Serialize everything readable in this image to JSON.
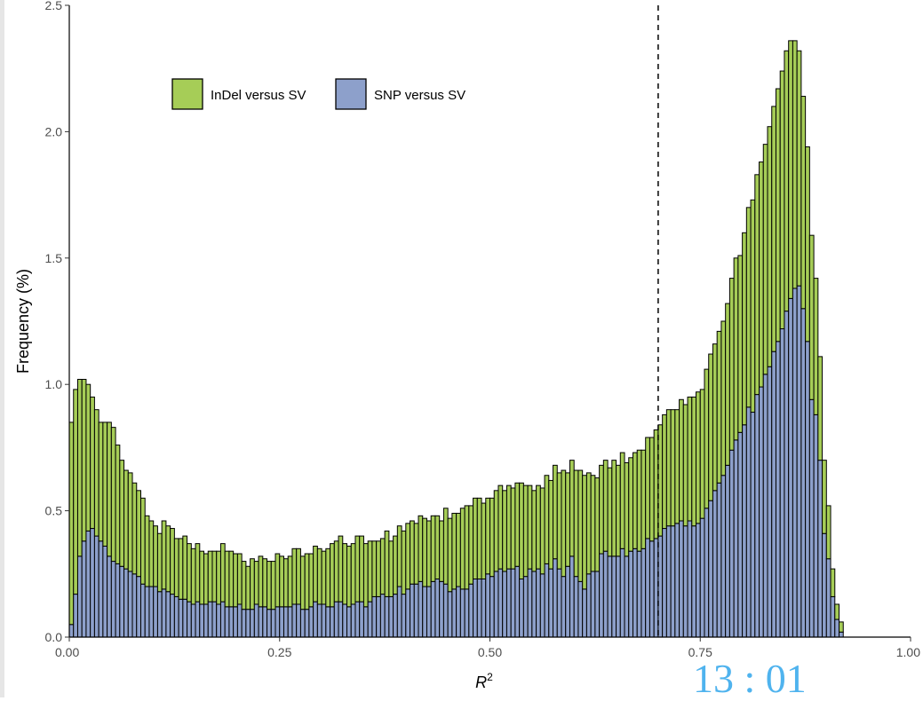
{
  "chart_data": {
    "type": "bar",
    "stacked": true,
    "xlabel": "R",
    "xlabel_superscript": "2",
    "ylabel": "Frequency (%)",
    "xlim": [
      0,
      1
    ],
    "ylim": [
      0,
      2.5
    ],
    "x_ticks": [
      "0.00",
      "0.25",
      "0.50",
      "0.75",
      "1.00"
    ],
    "y_ticks": [
      "0.0",
      "0.5",
      "1.0",
      "1.5",
      "2.0",
      "2.5"
    ],
    "grid": false,
    "legend_position": "top-left",
    "vline_x": 0.7,
    "bin_width": 0.005,
    "bins_start": 0.0,
    "series": [
      {
        "name": "SNP versus SV",
        "color": "#8DA0CB",
        "values": [
          0.05,
          0.17,
          0.32,
          0.38,
          0.42,
          0.43,
          0.4,
          0.38,
          0.36,
          0.32,
          0.3,
          0.29,
          0.28,
          0.27,
          0.26,
          0.25,
          0.24,
          0.21,
          0.2,
          0.2,
          0.2,
          0.18,
          0.19,
          0.18,
          0.17,
          0.16,
          0.15,
          0.15,
          0.14,
          0.13,
          0.14,
          0.13,
          0.13,
          0.14,
          0.14,
          0.13,
          0.14,
          0.12,
          0.12,
          0.12,
          0.13,
          0.11,
          0.11,
          0.11,
          0.13,
          0.12,
          0.12,
          0.11,
          0.11,
          0.12,
          0.12,
          0.12,
          0.12,
          0.13,
          0.13,
          0.11,
          0.11,
          0.12,
          0.14,
          0.13,
          0.13,
          0.12,
          0.12,
          0.14,
          0.14,
          0.13,
          0.12,
          0.13,
          0.14,
          0.14,
          0.12,
          0.14,
          0.16,
          0.16,
          0.17,
          0.16,
          0.16,
          0.17,
          0.2,
          0.17,
          0.19,
          0.21,
          0.21,
          0.22,
          0.2,
          0.2,
          0.22,
          0.23,
          0.22,
          0.21,
          0.18,
          0.19,
          0.2,
          0.19,
          0.19,
          0.21,
          0.23,
          0.23,
          0.23,
          0.25,
          0.24,
          0.26,
          0.27,
          0.26,
          0.27,
          0.27,
          0.28,
          0.23,
          0.24,
          0.27,
          0.26,
          0.27,
          0.25,
          0.29,
          0.27,
          0.31,
          0.27,
          0.24,
          0.28,
          0.32,
          0.24,
          0.22,
          0.19,
          0.25,
          0.26,
          0.26,
          0.33,
          0.34,
          0.32,
          0.32,
          0.32,
          0.35,
          0.32,
          0.34,
          0.35,
          0.34,
          0.35,
          0.39,
          0.38,
          0.39,
          0.4,
          0.43,
          0.44,
          0.44,
          0.45,
          0.46,
          0.44,
          0.46,
          0.44,
          0.45,
          0.47,
          0.51,
          0.54,
          0.58,
          0.61,
          0.64,
          0.68,
          0.74,
          0.78,
          0.81,
          0.84,
          0.91,
          0.89,
          0.96,
          0.99,
          1.04,
          1.07,
          1.13,
          1.17,
          1.22,
          1.29,
          1.34,
          1.38,
          1.39,
          1.3,
          1.17,
          0.94,
          0.88,
          0.7,
          0.41,
          0.31,
          0.16,
          0.07,
          0.02
        ]
      },
      {
        "name": "InDel versus SV",
        "color": "#A6CD57",
        "values": [
          0.8,
          0.81,
          0.7,
          0.64,
          0.58,
          0.52,
          0.5,
          0.47,
          0.49,
          0.53,
          0.53,
          0.47,
          0.42,
          0.39,
          0.39,
          0.36,
          0.34,
          0.34,
          0.28,
          0.26,
          0.24,
          0.23,
          0.27,
          0.26,
          0.26,
          0.23,
          0.24,
          0.25,
          0.23,
          0.22,
          0.23,
          0.21,
          0.2,
          0.2,
          0.2,
          0.21,
          0.23,
          0.22,
          0.22,
          0.21,
          0.2,
          0.19,
          0.17,
          0.2,
          0.17,
          0.2,
          0.19,
          0.19,
          0.19,
          0.21,
          0.2,
          0.19,
          0.2,
          0.22,
          0.22,
          0.21,
          0.22,
          0.21,
          0.22,
          0.22,
          0.21,
          0.23,
          0.25,
          0.24,
          0.26,
          0.24,
          0.24,
          0.24,
          0.26,
          0.26,
          0.25,
          0.24,
          0.22,
          0.22,
          0.22,
          0.26,
          0.22,
          0.23,
          0.24,
          0.25,
          0.26,
          0.25,
          0.24,
          0.26,
          0.27,
          0.26,
          0.26,
          0.25,
          0.24,
          0.3,
          0.29,
          0.3,
          0.29,
          0.32,
          0.33,
          0.31,
          0.32,
          0.32,
          0.3,
          0.3,
          0.31,
          0.32,
          0.33,
          0.32,
          0.33,
          0.32,
          0.33,
          0.38,
          0.36,
          0.33,
          0.32,
          0.33,
          0.34,
          0.35,
          0.35,
          0.37,
          0.38,
          0.42,
          0.37,
          0.38,
          0.42,
          0.44,
          0.45,
          0.4,
          0.38,
          0.37,
          0.35,
          0.36,
          0.35,
          0.38,
          0.36,
          0.38,
          0.37,
          0.37,
          0.38,
          0.4,
          0.39,
          0.4,
          0.41,
          0.43,
          0.44,
          0.45,
          0.46,
          0.46,
          0.45,
          0.48,
          0.48,
          0.49,
          0.51,
          0.52,
          0.51,
          0.55,
          0.58,
          0.58,
          0.6,
          0.61,
          0.64,
          0.68,
          0.72,
          0.7,
          0.76,
          0.79,
          0.84,
          0.87,
          0.89,
          0.91,
          0.95,
          0.97,
          1.0,
          1.02,
          1.03,
          1.02,
          0.98,
          0.93,
          0.84,
          0.77,
          0.65,
          0.54,
          0.41,
          0.29,
          0.21,
          0.11,
          0.06,
          0.04
        ]
      }
    ]
  },
  "legend": {
    "items": [
      {
        "label": "InDel versus SV",
        "color": "#A6CD57"
      },
      {
        "label": "SNP versus SV",
        "color": "#8DA0CB"
      }
    ]
  },
  "overlay": {
    "clock_text": "13 : 01"
  }
}
